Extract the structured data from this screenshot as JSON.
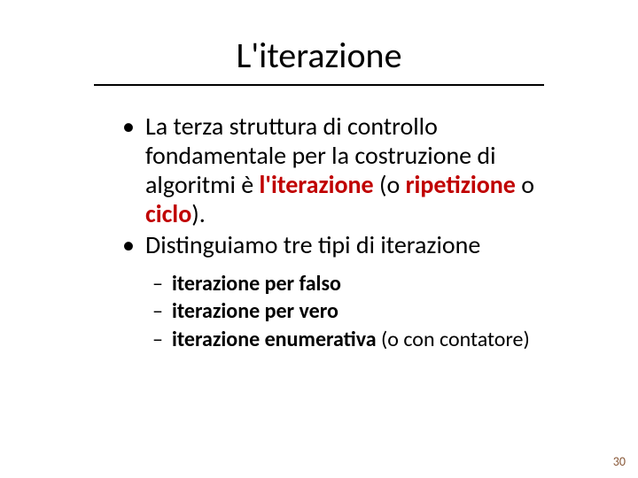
{
  "slide": {
    "title": "L'iterazione",
    "title_underline_color": "#000000",
    "bullets": [
      {
        "pre": "La terza struttura di controllo fondamentale per la costruzione di algoritmi è ",
        "em1": "l'iterazione",
        "mid1": " (o ",
        "em2": "ripetizione",
        "mid2": " o ",
        "em3": "ciclo",
        "post": ")."
      },
      {
        "text": "Distinguiamo tre tipi di iterazione"
      }
    ],
    "sub_bullets": [
      {
        "strong": "iterazione per falso",
        "rest": ""
      },
      {
        "strong": "iterazione per vero",
        "rest": ""
      },
      {
        "strong": "iterazione enumerativa",
        "rest": " (o con contatore)"
      }
    ],
    "page_number": "30",
    "colors": {
      "emphasis": "#c00000",
      "text": "#000000",
      "page_num": "#8a5a3a",
      "background": "#ffffff"
    },
    "fontsize": {
      "title": 40,
      "body": 28,
      "sub": 24,
      "pagenum": 14
    }
  }
}
